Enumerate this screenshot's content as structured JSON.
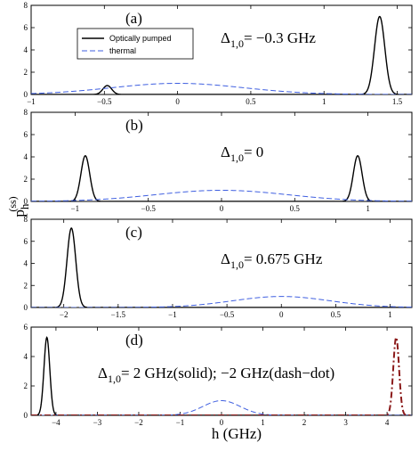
{
  "figure": {
    "xlabel": "h (GHz)",
    "ylabel_main": "p",
    "ylabel_sub": "h",
    "ylabel_sup": "(ss)"
  },
  "legend": {
    "entries": [
      {
        "label": "Optically pumped",
        "color": "#000000",
        "style": "solid"
      },
      {
        "label": "thermal",
        "color": "#3f5fe0",
        "style": "dashed"
      }
    ]
  },
  "chart_data": [
    {
      "type": "line",
      "panel_label": "(a)",
      "annotation_greek": "Δ",
      "annotation_sub": "1,0",
      "annotation_rest": "= −0.3 GHz",
      "xlim": [
        -1,
        1.6
      ],
      "ylim": [
        0,
        8
      ],
      "xticks": [
        -1,
        -0.5,
        0,
        0.5,
        1,
        1.5
      ],
      "xtick_labels": [
        "−1",
        "−0.5",
        "0",
        "0.5",
        "1",
        "1.5"
      ],
      "yticks": [
        0,
        2,
        4,
        6,
        8
      ],
      "ytick_labels": [
        "0",
        "2",
        "4",
        "6",
        "8"
      ],
      "show_legend": true,
      "series": [
        {
          "name": "Optically pumped",
          "kind": "gaussians",
          "color": "#000000",
          "style": "solid",
          "peaks": [
            {
              "center": -0.48,
              "height": 0.8,
              "width": 0.03
            },
            {
              "center": 1.38,
              "height": 7.0,
              "width": 0.035
            }
          ]
        },
        {
          "name": "thermal",
          "kind": "gaussians",
          "color": "#3f5fe0",
          "style": "dashed",
          "peaks": [
            {
              "center": 0.0,
              "height": 1.0,
              "width": 0.45
            }
          ]
        }
      ]
    },
    {
      "type": "line",
      "panel_label": "(b)",
      "annotation_greek": "Δ",
      "annotation_sub": "1,0",
      "annotation_rest": "= 0",
      "xlim": [
        -1.3,
        1.3
      ],
      "ylim": [
        0,
        8
      ],
      "xticks": [
        -1,
        -0.5,
        0,
        0.5,
        1
      ],
      "xtick_labels": [
        "−1",
        "−0.5",
        "0",
        "0.5",
        "1"
      ],
      "yticks": [
        0,
        2,
        4,
        6,
        8
      ],
      "ytick_labels": [
        "0",
        "2",
        "4",
        "6",
        "8"
      ],
      "show_legend": false,
      "series": [
        {
          "name": "Optically pumped",
          "kind": "gaussians",
          "color": "#000000",
          "style": "solid",
          "peaks": [
            {
              "center": -0.93,
              "height": 4.1,
              "width": 0.03
            },
            {
              "center": 0.93,
              "height": 4.1,
              "width": 0.03
            }
          ]
        },
        {
          "name": "thermal",
          "kind": "gaussians",
          "color": "#3f5fe0",
          "style": "dashed",
          "peaks": [
            {
              "center": 0.0,
              "height": 1.0,
              "width": 0.45
            }
          ]
        }
      ]
    },
    {
      "type": "line",
      "panel_label": "(c)",
      "annotation_greek": "Δ",
      "annotation_sub": "1,0",
      "annotation_rest": "= 0.675 GHz",
      "xlim": [
        -2.3,
        1.2
      ],
      "ylim": [
        0,
        8
      ],
      "xticks": [
        -2,
        -1.5,
        -1,
        -0.5,
        0,
        0.5,
        1
      ],
      "xtick_labels": [
        "−2",
        "−1.5",
        "−1",
        "−0.5",
        "0",
        "0.5",
        "1"
      ],
      "yticks": [
        0,
        2,
        4,
        6,
        8
      ],
      "ytick_labels": [
        "0",
        "2",
        "4",
        "6",
        "8"
      ],
      "show_legend": false,
      "series": [
        {
          "name": "Optically pumped",
          "kind": "gaussians",
          "color": "#000000",
          "style": "solid",
          "peaks": [
            {
              "center": -1.93,
              "height": 7.2,
              "width": 0.04
            }
          ]
        },
        {
          "name": "thermal",
          "kind": "gaussians",
          "color": "#3f5fe0",
          "style": "dashed",
          "peaks": [
            {
              "center": 0.0,
              "height": 1.0,
              "width": 0.45
            }
          ]
        }
      ]
    },
    {
      "type": "line",
      "panel_label": "(d)",
      "annotation_greek": "Δ",
      "annotation_sub": "1,0",
      "annotation_rest": "= 2 GHz(solid); −2 GHz(dash−dot)",
      "xlim": [
        -4.6,
        4.6
      ],
      "ylim": [
        0,
        6
      ],
      "xticks": [
        -4,
        -3,
        -2,
        -1,
        0,
        1,
        2,
        3,
        4
      ],
      "xtick_labels": [
        "−4",
        "−3",
        "−2",
        "−1",
        "0",
        "1",
        "2",
        "3",
        "4"
      ],
      "yticks": [
        0,
        2,
        4,
        6
      ],
      "ytick_labels": [
        "0",
        "2",
        "4",
        "6"
      ],
      "show_legend": false,
      "series": [
        {
          "name": "Optically pumped",
          "kind": "gaussians",
          "color": "#000000",
          "style": "solid",
          "peaks": [
            {
              "center": -4.22,
              "height": 5.3,
              "width": 0.07
            }
          ]
        },
        {
          "name": "thermal",
          "kind": "gaussians",
          "color": "#3f5fe0",
          "style": "dashed",
          "peaks": [
            {
              "center": 0.0,
              "height": 1.0,
              "width": 0.45
            }
          ]
        },
        {
          "name": "Optically pumped (−2 GHz)",
          "kind": "gaussians",
          "color": "#8b1a1a",
          "style": "dashdot",
          "peaks": [
            {
              "center": 4.22,
              "height": 5.3,
              "width": 0.07
            }
          ]
        }
      ]
    }
  ]
}
